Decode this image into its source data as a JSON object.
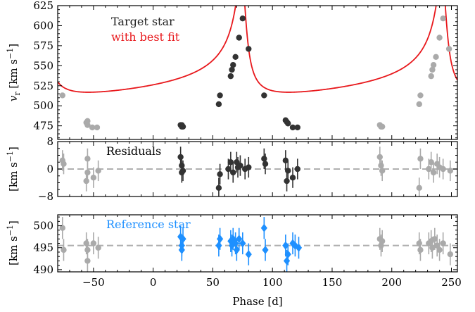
{
  "chart_data": {
    "type": "scatter",
    "x_axis": {
      "label": "Phase [d]",
      "range": [
        -80,
        255
      ],
      "ticks": [
        -50,
        0,
        50,
        100,
        150,
        200,
        250
      ],
      "minor_step": 10
    },
    "panels": [
      {
        "id": "rv",
        "ylabel_prefix": "v",
        "ylabel_subscript": "r",
        "ylabel_suffix": "[km s",
        "ylabel_exp": "−1",
        "ylabel_close": "]",
        "ylim": [
          458,
          625
        ],
        "yticks": [
          475,
          500,
          525,
          550,
          575,
          600,
          625
        ],
        "y_minor_step": 5,
        "legend": [
          {
            "text": "Target star",
            "color": "#222222"
          },
          {
            "text": "with best fit",
            "color": "#e8181c"
          }
        ],
        "model": {
          "color": "#e8181c",
          "gamma": 540.8,
          "K": 75,
          "e": 0.75,
          "omega_rad": 0.43,
          "period": 168,
          "periastron_x": 75
        },
        "series": [
          {
            "name": "Target star",
            "color": "#333333",
            "marker": "circle",
            "errorbars": false,
            "points": [
              {
                "x": 23,
                "y": 476
              },
              {
                "x": 24,
                "y": 474
              },
              {
                "x": 25,
                "y": 474
              },
              {
                "x": 24,
                "y": 476
              },
              {
                "x": 55,
                "y": 502
              },
              {
                "x": 56,
                "y": 513
              },
              {
                "x": 65,
                "y": 537
              },
              {
                "x": 66,
                "y": 545
              },
              {
                "x": 67,
                "y": 551
              },
              {
                "x": 69,
                "y": 561
              },
              {
                "x": 72,
                "y": 585
              },
              {
                "x": 75,
                "y": 609
              },
              {
                "x": 80,
                "y": 571
              },
              {
                "x": 93,
                "y": 513
              },
              {
                "x": 111,
                "y": 482
              },
              {
                "x": 112,
                "y": 480
              },
              {
                "x": 113,
                "y": 478
              },
              {
                "x": 117,
                "y": 473
              },
              {
                "x": 121,
                "y": 473
              }
            ]
          },
          {
            "name": "Target star (phase-wrapped copy)",
            "color": "#aaaaaa",
            "marker": "circle",
            "errorbars": false,
            "points": [
              {
                "x": -76,
                "y": 513
              },
              {
                "x": -55,
                "y": 481
              },
              {
                "x": -56,
                "y": 479
              },
              {
                "x": -55,
                "y": 476
              },
              {
                "x": -51,
                "y": 473
              },
              {
                "x": -47,
                "y": 473
              },
              {
                "x": 190,
                "y": 476
              },
              {
                "x": 191,
                "y": 474
              },
              {
                "x": 192,
                "y": 474
              },
              {
                "x": 223,
                "y": 502
              },
              {
                "x": 224,
                "y": 513
              },
              {
                "x": 233,
                "y": 537
              },
              {
                "x": 234,
                "y": 545
              },
              {
                "x": 235,
                "y": 551
              },
              {
                "x": 237,
                "y": 561
              },
              {
                "x": 240,
                "y": 585
              },
              {
                "x": 243,
                "y": 609
              },
              {
                "x": 248,
                "y": 571
              }
            ]
          }
        ]
      },
      {
        "id": "residuals",
        "panel_label": "Residuals",
        "ylabel_prefix": "",
        "ylabel_subscript": "",
        "ylabel_suffix": "[km s",
        "ylabel_exp": "−1",
        "ylabel_close": "]",
        "ylim": [
          -8,
          8
        ],
        "yticks": [
          -8,
          0,
          8
        ],
        "y_minor_step": 2,
        "reference_line": 0,
        "series": [
          {
            "name": "Residuals",
            "color": "#333333",
            "marker": "circle",
            "errorbars": true,
            "points": [
              {
                "x": 23,
                "y": 3.5,
                "err": 3
              },
              {
                "x": 24,
                "y": 1,
                "err": 3
              },
              {
                "x": 25,
                "y": -0.5,
                "err": 3
              },
              {
                "x": 24,
                "y": -1,
                "err": 3
              },
              {
                "x": 55,
                "y": -5.5,
                "err": 3
              },
              {
                "x": 56,
                "y": -1.5,
                "err": 3
              },
              {
                "x": 63,
                "y": 0,
                "err": 3
              },
              {
                "x": 65,
                "y": 2,
                "err": 3
              },
              {
                "x": 67,
                "y": -1,
                "err": 3
              },
              {
                "x": 70,
                "y": 2,
                "err": 3
              },
              {
                "x": 71,
                "y": 0.5,
                "err": 3
              },
              {
                "x": 73,
                "y": 1,
                "err": 3
              },
              {
                "x": 77,
                "y": 0,
                "err": 3
              },
              {
                "x": 80,
                "y": 0.5,
                "err": 3
              },
              {
                "x": 93,
                "y": 3,
                "err": 3
              },
              {
                "x": 94,
                "y": 1.5,
                "err": 3
              },
              {
                "x": 111,
                "y": 2.5,
                "err": 3
              },
              {
                "x": 112,
                "y": -3.5,
                "err": 3
              },
              {
                "x": 113,
                "y": -0.5,
                "err": 3
              },
              {
                "x": 117,
                "y": -2.5,
                "err": 3
              },
              {
                "x": 121,
                "y": 0,
                "err": 3
              }
            ]
          },
          {
            "name": "Residuals (phase-wrapped copy)",
            "color": "#aaaaaa",
            "marker": "circle",
            "errorbars": true,
            "points": [
              {
                "x": -76,
                "y": 2.5,
                "err": 3
              },
              {
                "x": -75,
                "y": 1.5,
                "err": 3
              },
              {
                "x": -55,
                "y": 3,
                "err": 3
              },
              {
                "x": -56,
                "y": -3.5,
                "err": 3
              },
              {
                "x": -55,
                "y": -1,
                "err": 3
              },
              {
                "x": -50,
                "y": -2.5,
                "err": 3
              },
              {
                "x": -46,
                "y": -0.5,
                "err": 3
              },
              {
                "x": 190,
                "y": 3.5,
                "err": 3
              },
              {
                "x": 191,
                "y": 1,
                "err": 3
              },
              {
                "x": 192,
                "y": -0.5,
                "err": 3
              },
              {
                "x": 223,
                "y": -5.5,
                "err": 3
              },
              {
                "x": 224,
                "y": 3,
                "err": 3
              },
              {
                "x": 231,
                "y": 0,
                "err": 3
              },
              {
                "x": 233,
                "y": 2,
                "err": 3
              },
              {
                "x": 235,
                "y": -1,
                "err": 3
              },
              {
                "x": 238,
                "y": 1.5,
                "err": 3
              },
              {
                "x": 240,
                "y": 0.5,
                "err": 3
              },
              {
                "x": 243,
                "y": 0,
                "err": 3
              },
              {
                "x": 249,
                "y": -0.5,
                "err": 3
              }
            ]
          }
        ]
      },
      {
        "id": "reference",
        "panel_label": "Reference star",
        "panel_label_color": "#1e90ff",
        "ylabel_prefix": "",
        "ylabel_subscript": "",
        "ylabel_suffix": "[km s",
        "ylabel_exp": "−1",
        "ylabel_close": "]",
        "ylim": [
          489.5,
          502.5
        ],
        "yticks": [
          490,
          495,
          500
        ],
        "y_minor_step": 1,
        "reference_line": 495.5,
        "series": [
          {
            "name": "Reference star",
            "color": "#1e90ff",
            "marker": "diamond",
            "errorbars": true,
            "points": [
              {
                "x": 23,
                "y": 497.5,
                "err": 2.5
              },
              {
                "x": 24,
                "y": 495.5,
                "err": 2.5
              },
              {
                "x": 25,
                "y": 497,
                "err": 2.5
              },
              {
                "x": 24,
                "y": 494.5,
                "err": 2.5
              },
              {
                "x": 55,
                "y": 495.5,
                "err": 2.5
              },
              {
                "x": 56,
                "y": 497,
                "err": 2.5
              },
              {
                "x": 65,
                "y": 496.5,
                "err": 2.5
              },
              {
                "x": 66,
                "y": 495.5,
                "err": 2.5
              },
              {
                "x": 67,
                "y": 497,
                "err": 2.5
              },
              {
                "x": 69,
                "y": 496,
                "err": 2.5
              },
              {
                "x": 70,
                "y": 494.5,
                "err": 2.5
              },
              {
                "x": 72,
                "y": 497,
                "err": 2.5
              },
              {
                "x": 75,
                "y": 496,
                "err": 2.5
              },
              {
                "x": 80,
                "y": 493.5,
                "err": 2.5
              },
              {
                "x": 93,
                "y": 499.5,
                "err": 2.5
              },
              {
                "x": 94,
                "y": 494.5,
                "err": 2.5
              },
              {
                "x": 111,
                "y": 495.5,
                "err": 2.5
              },
              {
                "x": 112,
                "y": 492,
                "err": 2.5
              },
              {
                "x": 113,
                "y": 493.5,
                "err": 2.5
              },
              {
                "x": 117,
                "y": 496,
                "err": 2.5
              },
              {
                "x": 119,
                "y": 495.5,
                "err": 2.5
              },
              {
                "x": 122,
                "y": 495,
                "err": 2.5
              }
            ]
          },
          {
            "name": "Reference star (phase-wrapped copy)",
            "color": "#aaaaaa",
            "marker": "circle",
            "errorbars": true,
            "points": [
              {
                "x": -76,
                "y": 499.5,
                "err": 2.5
              },
              {
                "x": -75,
                "y": 494.5,
                "err": 2.5
              },
              {
                "x": -56,
                "y": 496,
                "err": 2.5
              },
              {
                "x": -55,
                "y": 494.5,
                "err": 2.5
              },
              {
                "x": -55,
                "y": 492,
                "err": 2.5
              },
              {
                "x": -50,
                "y": 496,
                "err": 2.5
              },
              {
                "x": -46,
                "y": 495,
                "err": 2.5
              },
              {
                "x": 190,
                "y": 497,
                "err": 2.5
              },
              {
                "x": 191,
                "y": 495.5,
                "err": 2.5
              },
              {
                "x": 192,
                "y": 496.5,
                "err": 2.5
              },
              {
                "x": 223,
                "y": 496,
                "err": 2.5
              },
              {
                "x": 224,
                "y": 494.5,
                "err": 2.5
              },
              {
                "x": 231,
                "y": 496,
                "err": 2.5
              },
              {
                "x": 233,
                "y": 496.5,
                "err": 2.5
              },
              {
                "x": 234,
                "y": 495,
                "err": 2.5
              },
              {
                "x": 236,
                "y": 497,
                "err": 2.5
              },
              {
                "x": 238,
                "y": 495.5,
                "err": 2.5
              },
              {
                "x": 240,
                "y": 494.5,
                "err": 2.5
              },
              {
                "x": 243,
                "y": 496,
                "err": 2.5
              },
              {
                "x": 249,
                "y": 493.5,
                "err": 2.5
              }
            ]
          }
        ]
      }
    ],
    "style": {
      "reference_line_color": "#b0b0b0",
      "frame_color": "#000000"
    }
  }
}
